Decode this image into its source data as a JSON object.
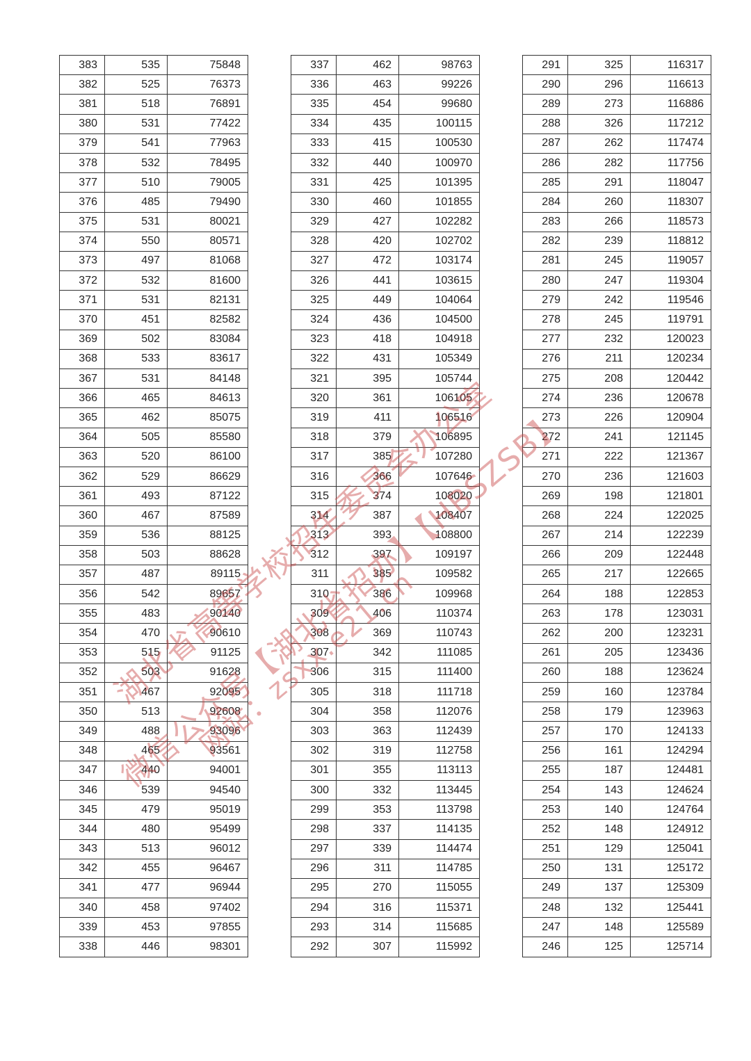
{
  "tables": [
    {
      "rows": [
        [
          "383",
          "535",
          "75848"
        ],
        [
          "382",
          "525",
          "76373"
        ],
        [
          "381",
          "518",
          "76891"
        ],
        [
          "380",
          "531",
          "77422"
        ],
        [
          "379",
          "541",
          "77963"
        ],
        [
          "378",
          "532",
          "78495"
        ],
        [
          "377",
          "510",
          "79005"
        ],
        [
          "376",
          "485",
          "79490"
        ],
        [
          "375",
          "531",
          "80021"
        ],
        [
          "374",
          "550",
          "80571"
        ],
        [
          "373",
          "497",
          "81068"
        ],
        [
          "372",
          "532",
          "81600"
        ],
        [
          "371",
          "531",
          "82131"
        ],
        [
          "370",
          "451",
          "82582"
        ],
        [
          "369",
          "502",
          "83084"
        ],
        [
          "368",
          "533",
          "83617"
        ],
        [
          "367",
          "531",
          "84148"
        ],
        [
          "366",
          "465",
          "84613"
        ],
        [
          "365",
          "462",
          "85075"
        ],
        [
          "364",
          "505",
          "85580"
        ],
        [
          "363",
          "520",
          "86100"
        ],
        [
          "362",
          "529",
          "86629"
        ],
        [
          "361",
          "493",
          "87122"
        ],
        [
          "360",
          "467",
          "87589"
        ],
        [
          "359",
          "536",
          "88125"
        ],
        [
          "358",
          "503",
          "88628"
        ],
        [
          "357",
          "487",
          "89115"
        ],
        [
          "356",
          "542",
          "89657"
        ],
        [
          "355",
          "483",
          "90140"
        ],
        [
          "354",
          "470",
          "90610"
        ],
        [
          "353",
          "515",
          "91125"
        ],
        [
          "352",
          "503",
          "91628"
        ],
        [
          "351",
          "467",
          "92095"
        ],
        [
          "350",
          "513",
          "92608"
        ],
        [
          "349",
          "488",
          "93096"
        ],
        [
          "348",
          "465",
          "93561"
        ],
        [
          "347",
          "440",
          "94001"
        ],
        [
          "346",
          "539",
          "94540"
        ],
        [
          "345",
          "479",
          "95019"
        ],
        [
          "344",
          "480",
          "95499"
        ],
        [
          "343",
          "513",
          "96012"
        ],
        [
          "342",
          "455",
          "96467"
        ],
        [
          "341",
          "477",
          "96944"
        ],
        [
          "340",
          "458",
          "97402"
        ],
        [
          "339",
          "453",
          "97855"
        ],
        [
          "338",
          "446",
          "98301"
        ]
      ]
    },
    {
      "rows": [
        [
          "337",
          "462",
          "98763"
        ],
        [
          "336",
          "463",
          "99226"
        ],
        [
          "335",
          "454",
          "99680"
        ],
        [
          "334",
          "435",
          "100115"
        ],
        [
          "333",
          "415",
          "100530"
        ],
        [
          "332",
          "440",
          "100970"
        ],
        [
          "331",
          "425",
          "101395"
        ],
        [
          "330",
          "460",
          "101855"
        ],
        [
          "329",
          "427",
          "102282"
        ],
        [
          "328",
          "420",
          "102702"
        ],
        [
          "327",
          "472",
          "103174"
        ],
        [
          "326",
          "441",
          "103615"
        ],
        [
          "325",
          "449",
          "104064"
        ],
        [
          "324",
          "436",
          "104500"
        ],
        [
          "323",
          "418",
          "104918"
        ],
        [
          "322",
          "431",
          "105349"
        ],
        [
          "321",
          "395",
          "105744"
        ],
        [
          "320",
          "361",
          "106105"
        ],
        [
          "319",
          "411",
          "106516"
        ],
        [
          "318",
          "379",
          "106895"
        ],
        [
          "317",
          "385",
          "107280"
        ],
        [
          "316",
          "366",
          "107646"
        ],
        [
          "315",
          "374",
          "108020"
        ],
        [
          "314",
          "387",
          "108407"
        ],
        [
          "313",
          "393",
          "108800"
        ],
        [
          "312",
          "397",
          "109197"
        ],
        [
          "311",
          "385",
          "109582"
        ],
        [
          "310",
          "386",
          "109968"
        ],
        [
          "309",
          "406",
          "110374"
        ],
        [
          "308",
          "369",
          "110743"
        ],
        [
          "307",
          "342",
          "111085"
        ],
        [
          "306",
          "315",
          "111400"
        ],
        [
          "305",
          "318",
          "111718"
        ],
        [
          "304",
          "358",
          "112076"
        ],
        [
          "303",
          "363",
          "112439"
        ],
        [
          "302",
          "319",
          "112758"
        ],
        [
          "301",
          "355",
          "113113"
        ],
        [
          "300",
          "332",
          "113445"
        ],
        [
          "299",
          "353",
          "113798"
        ],
        [
          "298",
          "337",
          "114135"
        ],
        [
          "297",
          "339",
          "114474"
        ],
        [
          "296",
          "311",
          "114785"
        ],
        [
          "295",
          "270",
          "115055"
        ],
        [
          "294",
          "316",
          "115371"
        ],
        [
          "293",
          "314",
          "115685"
        ],
        [
          "292",
          "307",
          "115992"
        ]
      ]
    },
    {
      "rows": [
        [
          "291",
          "325",
          "116317"
        ],
        [
          "290",
          "296",
          "116613"
        ],
        [
          "289",
          "273",
          "116886"
        ],
        [
          "288",
          "326",
          "117212"
        ],
        [
          "287",
          "262",
          "117474"
        ],
        [
          "286",
          "282",
          "117756"
        ],
        [
          "285",
          "291",
          "118047"
        ],
        [
          "284",
          "260",
          "118307"
        ],
        [
          "283",
          "266",
          "118573"
        ],
        [
          "282",
          "239",
          "118812"
        ],
        [
          "281",
          "245",
          "119057"
        ],
        [
          "280",
          "247",
          "119304"
        ],
        [
          "279",
          "242",
          "119546"
        ],
        [
          "278",
          "245",
          "119791"
        ],
        [
          "277",
          "232",
          "120023"
        ],
        [
          "276",
          "211",
          "120234"
        ],
        [
          "275",
          "208",
          "120442"
        ],
        [
          "274",
          "236",
          "120678"
        ],
        [
          "273",
          "226",
          "120904"
        ],
        [
          "272",
          "241",
          "121145"
        ],
        [
          "271",
          "222",
          "121367"
        ],
        [
          "270",
          "236",
          "121603"
        ],
        [
          "269",
          "198",
          "121801"
        ],
        [
          "268",
          "224",
          "122025"
        ],
        [
          "267",
          "214",
          "122239"
        ],
        [
          "266",
          "209",
          "122448"
        ],
        [
          "265",
          "217",
          "122665"
        ],
        [
          "264",
          "188",
          "122853"
        ],
        [
          "263",
          "178",
          "123031"
        ],
        [
          "262",
          "200",
          "123231"
        ],
        [
          "261",
          "205",
          "123436"
        ],
        [
          "260",
          "188",
          "123624"
        ],
        [
          "259",
          "160",
          "123784"
        ],
        [
          "258",
          "179",
          "123963"
        ],
        [
          "257",
          "170",
          "124133"
        ],
        [
          "256",
          "161",
          "124294"
        ],
        [
          "255",
          "187",
          "124481"
        ],
        [
          "254",
          "143",
          "124624"
        ],
        [
          "253",
          "140",
          "124764"
        ],
        [
          "252",
          "148",
          "124912"
        ],
        [
          "251",
          "129",
          "125041"
        ],
        [
          "250",
          "131",
          "125172"
        ],
        [
          "249",
          "137",
          "125309"
        ],
        [
          "248",
          "132",
          "125441"
        ],
        [
          "247",
          "148",
          "125589"
        ],
        [
          "246",
          "125",
          "125714"
        ]
      ]
    }
  ],
  "watermark": {
    "lines": [
      "湖北省高等学校招生委员会办公室",
      "微信公众号【湖北省招办】【HBSZSB】",
      "网站：zsxx.e21.cn"
    ],
    "color": "#c84646"
  }
}
